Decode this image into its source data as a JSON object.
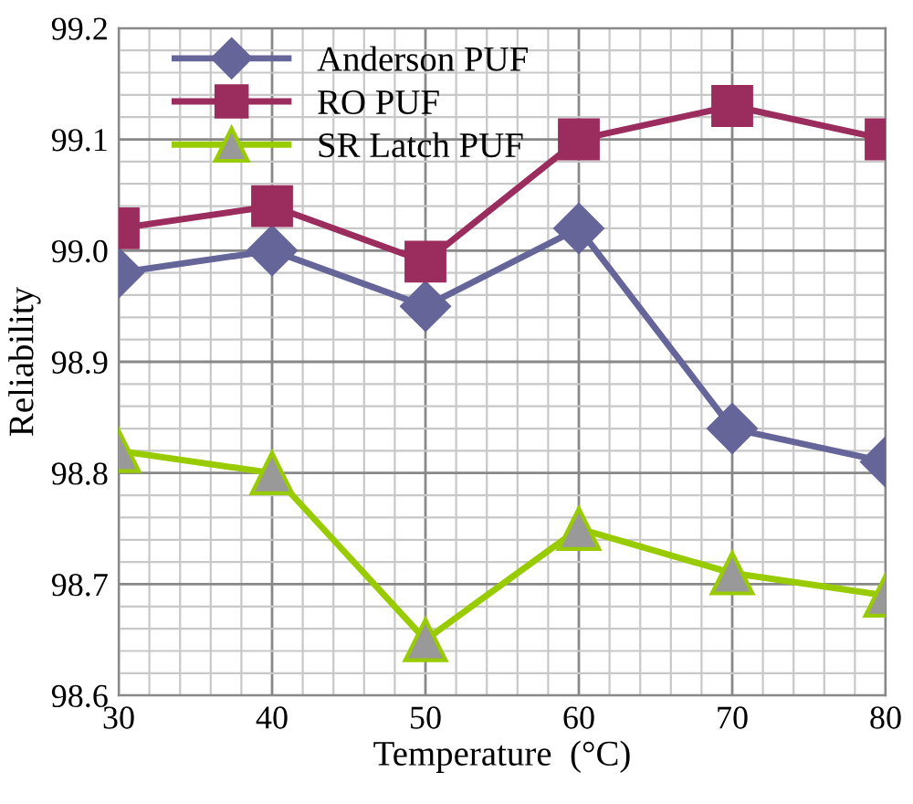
{
  "chart_data": {
    "type": "line",
    "xlabel": "Temperature  (°C)",
    "ylabel": "Reliability",
    "x": [
      30,
      40,
      50,
      60,
      70,
      80
    ],
    "series": [
      {
        "name": "Anderson PUF",
        "color": "#65659a",
        "marker": "diamond",
        "values": [
          98.98,
          99.0,
          98.95,
          99.02,
          98.84,
          98.81
        ]
      },
      {
        "name": "RO PUF",
        "color": "#9b2c5e",
        "marker": "square",
        "values": [
          99.02,
          99.04,
          98.99,
          99.1,
          99.13,
          99.1
        ]
      },
      {
        "name": "SR Latch PUF",
        "color": "#99cc00",
        "marker": "triangle",
        "values": [
          98.82,
          98.8,
          98.65,
          98.75,
          98.71,
          98.69
        ]
      }
    ],
    "xlim": [
      30,
      80
    ],
    "xticks": [
      30,
      40,
      50,
      60,
      70,
      80
    ],
    "ylim": [
      98.6,
      99.2
    ],
    "yticks": [
      {
        "value": 98.6,
        "label": "98.6"
      },
      {
        "value": 98.7,
        "label": "98.7"
      },
      {
        "value": 98.8,
        "label": "98.8"
      },
      {
        "value": 98.9,
        "label": "98.9"
      },
      {
        "value": 99.0,
        "label": "99.0"
      },
      {
        "value": 99.1,
        "label": "99.1"
      },
      {
        "value": 99.2,
        "label": "99.2"
      }
    ],
    "grid": true,
    "legend": "top left",
    "line_style": "solid"
  }
}
